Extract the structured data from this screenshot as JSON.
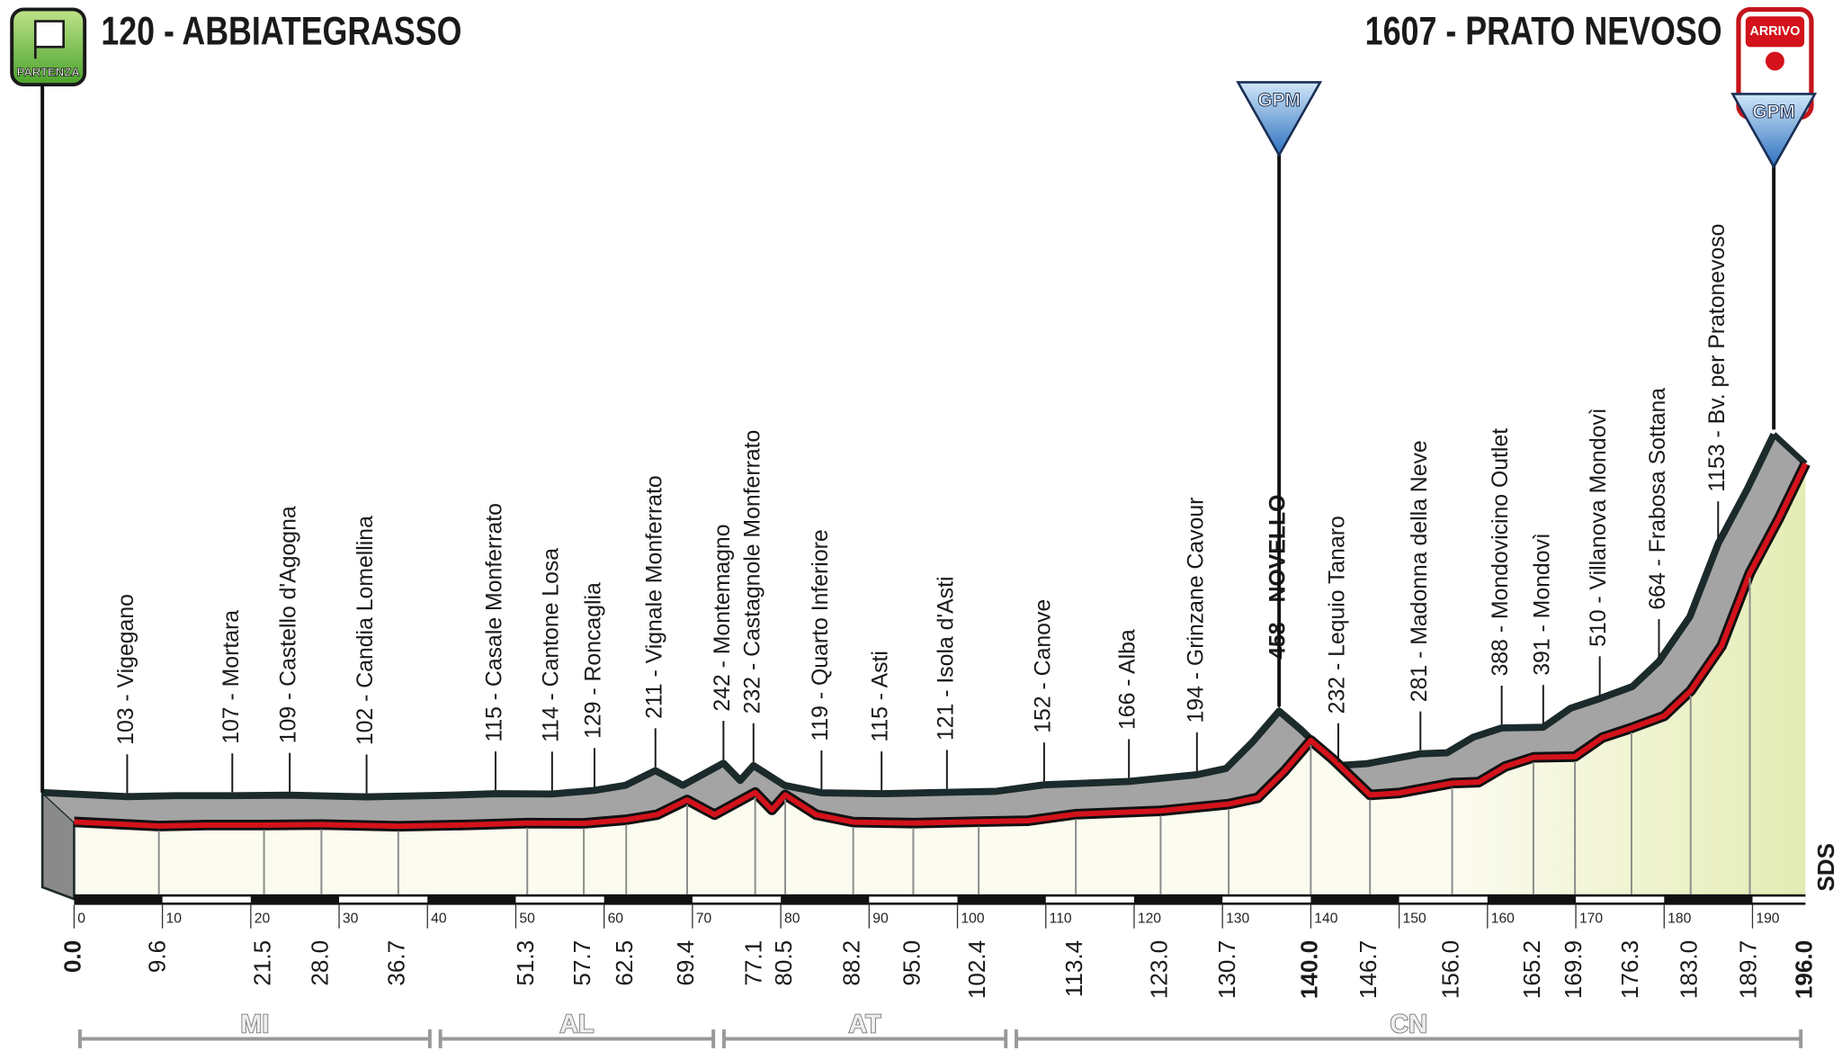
{
  "chart_data": {
    "type": "area",
    "start": "120 - ABBIATEGRASSO",
    "finish": "1607 - PRATO NEVOSO",
    "start_badge": "PARTENZA",
    "finish_badge": "ARRIVO",
    "watermark": "SDS",
    "x": [
      0,
      9.6,
      15,
      21.5,
      28,
      36.7,
      45,
      51.3,
      57.7,
      62.5,
      66,
      69.4,
      72.5,
      77.1,
      79,
      80.5,
      84,
      88.2,
      95,
      102.4,
      108,
      113.4,
      123,
      130.7,
      134,
      137,
      140,
      142.5,
      146.7,
      150,
      156,
      159,
      162,
      165.2,
      169.9,
      173,
      176.3,
      180,
      183,
      186.5,
      189.7,
      193,
      196
    ],
    "values": [
      120,
      103,
      107,
      107,
      109,
      102,
      108,
      115,
      114,
      129,
      150,
      211,
      150,
      242,
      170,
      232,
      150,
      119,
      115,
      121,
      125,
      152,
      166,
      194,
      220,
      330,
      458,
      380,
      232,
      240,
      281,
      285,
      350,
      388,
      391,
      470,
      510,
      560,
      664,
      850,
      1153,
      1380,
      1607
    ],
    "xlim": [
      0,
      196
    ],
    "ylim": [
      -200,
      1700
    ],
    "xticks": [
      0,
      10,
      20,
      30,
      40,
      50,
      60,
      70,
      80,
      90,
      100,
      110,
      120,
      130,
      140,
      150,
      160,
      170,
      180,
      190
    ],
    "colors": {
      "profile": "#d3121b",
      "band": "#a4a4a4",
      "outline": "#1b2a2a",
      "fill": "#fbfbef",
      "fill_end": "#e4ecb4"
    },
    "waypoints": [
      {
        "km": {
          "value": 0,
          "label": "0.0"
        },
        "bold": true
      },
      {
        "km": 9.6,
        "name": "103 - Vigegano"
      },
      {
        "km": 21.5,
        "name": "107 - Mortara"
      },
      {
        "km": {
          "value": 28,
          "label": "28.0"
        },
        "name": "109 - Castello d'Agogna"
      },
      {
        "km": 36.7,
        "name": "102 - Candia Lomellina"
      },
      {
        "km": 51.3,
        "name": "115 - Casale Monferrato"
      },
      {
        "km": 57.7,
        "name": "114 - Cantone Losa"
      },
      {
        "km": 62.5,
        "name": "129 - Roncaglia"
      },
      {
        "km": 69.4,
        "name": "211 - Vignale Monferrato"
      },
      {
        "km": 77.1,
        "name": "242 - Montemagno"
      },
      {
        "km": 80.5,
        "name": "232 - Castagnole Monferrato"
      },
      {
        "km": 88.2,
        "name": "119 - Quarto Inferiore"
      },
      {
        "km": {
          "value": 95,
          "label": "95.0"
        },
        "name": "115 - Asti"
      },
      {
        "km": 102.4,
        "name": "121 - Isola d'Asti"
      },
      {
        "km": 113.4,
        "name": "152 - Canove"
      },
      {
        "km": {
          "value": 123,
          "label": "123.0"
        },
        "name": "166 - Alba"
      },
      {
        "km": 130.7,
        "name": "194 - Grinzane Cavour"
      },
      {
        "km": {
          "value": 140,
          "label": "140.0"
        },
        "name": "458 - NOVELLO",
        "bold": true
      },
      {
        "km": 146.7,
        "name": "232 - Lequio Tanaro"
      },
      {
        "km": {
          "value": 156,
          "label": "156.0"
        },
        "name": "281 - Madonna della Neve"
      },
      {
        "km": 165.2,
        "name": "388 - Mondovicino Outlet"
      },
      {
        "km": 169.9,
        "name": "391 - Mondovì"
      },
      {
        "km": 176.3,
        "name": "510 - Villanova Mondovì"
      },
      {
        "km": {
          "value": 183,
          "label": "183.0"
        },
        "name": "664 - Frabosa Sottana"
      },
      {
        "km": 189.7,
        "name": "1153 - Bv. per Pratonevoso"
      },
      {
        "km": {
          "value": 196,
          "label": "196.0"
        },
        "bold": true
      }
    ],
    "gpm": [
      {
        "km": 140,
        "label": "GPM"
      },
      {
        "km": 196,
        "label": "GPM"
      }
    ],
    "provinces": [
      {
        "name": "MI",
        "start": 0,
        "end": 40.8
      },
      {
        "name": "AL",
        "start": 40.8,
        "end": 72.9
      },
      {
        "name": "AT",
        "start": 72.9,
        "end": 106
      },
      {
        "name": "CN",
        "start": 106,
        "end": 196
      }
    ]
  }
}
